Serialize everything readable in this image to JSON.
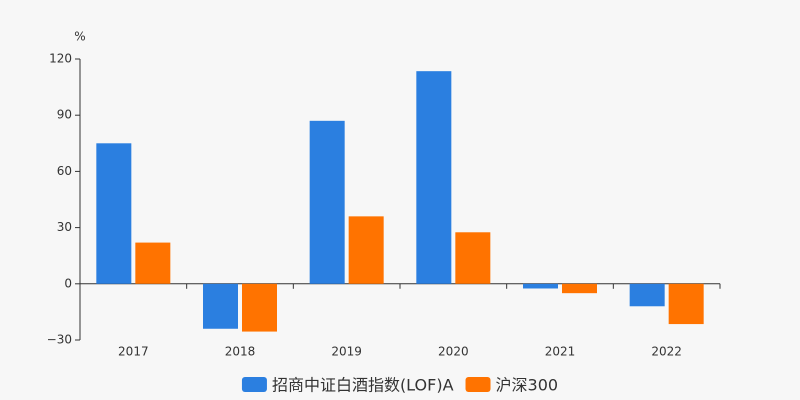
{
  "chart_data": {
    "type": "bar",
    "y_label": "%",
    "categories": [
      "2017",
      "2018",
      "2019",
      "2020",
      "2021",
      "2022"
    ],
    "series": [
      {
        "name": "招商中证白酒指数(LOF)A",
        "color": "#2b7fe0",
        "values": [
          75,
          -24,
          87,
          113.5,
          -2.5,
          -12
        ]
      },
      {
        "name": "沪深300",
        "color": "#ff7300",
        "values": [
          22,
          -25.5,
          36,
          27.5,
          -5,
          -21.5
        ]
      }
    ],
    "ylim": [
      -30,
      120
    ],
    "yticks": [
      {
        "value": -30,
        "label": "−30"
      },
      0,
      30,
      60,
      90,
      120
    ],
    "grid": false,
    "legend": "bottom"
  }
}
